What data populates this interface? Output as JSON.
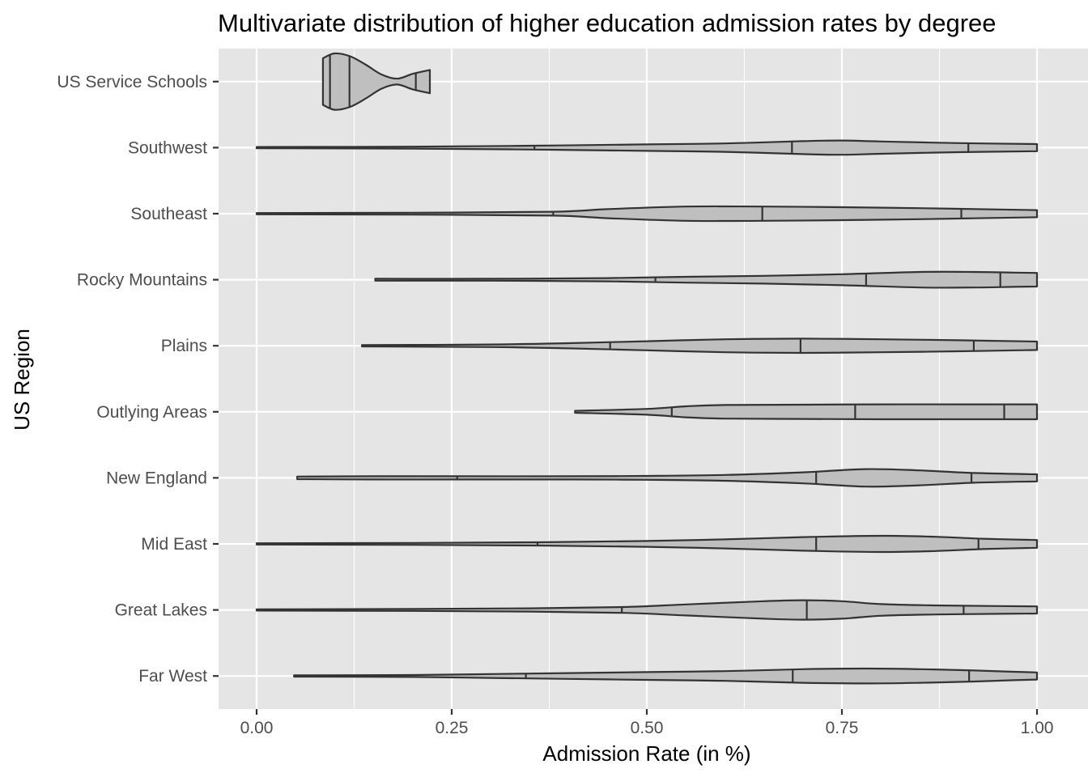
{
  "chart_data": {
    "type": "violin",
    "title": "Multivariate distribution of higher education admission rates by degree",
    "xlabel": "Admission Rate (in %)",
    "ylabel": "US Region",
    "xlim": [
      -0.024,
      1.05
    ],
    "x_ticks": [
      "0.00",
      "0.25",
      "0.50",
      "0.75",
      "1.00"
    ],
    "x_tick_values": [
      0,
      0.25,
      0.5,
      0.75,
      1.0
    ],
    "grid": true,
    "fill_color": "#bfbfbf",
    "outline_color": "#333333",
    "panel_color": "#e5e5e5",
    "categories": [
      "Far West",
      "Great Lakes",
      "Mid East",
      "New England",
      "Outlying Areas",
      "Plains",
      "Rocky Mountains",
      "Southeast",
      "Southwest",
      "US Service Schools"
    ],
    "violins": [
      {
        "category": "Far West",
        "min": 0.048,
        "max": 1.0,
        "quantiles": [
          0.345,
          0.687,
          0.913
        ],
        "density": [
          [
            0.048,
            0.02
          ],
          [
            0.2,
            0.03
          ],
          [
            0.3,
            0.06
          ],
          [
            0.4,
            0.09
          ],
          [
            0.5,
            0.12
          ],
          [
            0.6,
            0.15
          ],
          [
            0.7,
            0.21
          ],
          [
            0.78,
            0.23
          ],
          [
            0.85,
            0.21
          ],
          [
            0.92,
            0.17
          ],
          [
            0.97,
            0.13
          ],
          [
            1.0,
            0.11
          ]
        ]
      },
      {
        "category": "Great Lakes",
        "min": 0.0,
        "max": 1.0,
        "quantiles": [
          0.468,
          0.705,
          0.906
        ],
        "density": [
          [
            0.0,
            0.02
          ],
          [
            0.2,
            0.03
          ],
          [
            0.35,
            0.05
          ],
          [
            0.47,
            0.09
          ],
          [
            0.55,
            0.17
          ],
          [
            0.65,
            0.27
          ],
          [
            0.7,
            0.3
          ],
          [
            0.75,
            0.27
          ],
          [
            0.8,
            0.18
          ],
          [
            0.87,
            0.14
          ],
          [
            0.95,
            0.12
          ],
          [
            1.0,
            0.11
          ]
        ]
      },
      {
        "category": "Mid East",
        "min": 0.0,
        "max": 1.0,
        "quantiles": [
          0.36,
          0.717,
          0.925
        ],
        "density": [
          [
            0.0,
            0.02
          ],
          [
            0.2,
            0.03
          ],
          [
            0.36,
            0.05
          ],
          [
            0.5,
            0.09
          ],
          [
            0.6,
            0.14
          ],
          [
            0.7,
            0.21
          ],
          [
            0.8,
            0.25
          ],
          [
            0.87,
            0.22
          ],
          [
            0.93,
            0.16
          ],
          [
            1.0,
            0.12
          ]
        ]
      },
      {
        "category": "New England",
        "min": 0.052,
        "max": 1.0,
        "quantiles": [
          0.257,
          0.717,
          0.916
        ],
        "density": [
          [
            0.052,
            0.04
          ],
          [
            0.15,
            0.05
          ],
          [
            0.257,
            0.05
          ],
          [
            0.4,
            0.05
          ],
          [
            0.5,
            0.06
          ],
          [
            0.6,
            0.09
          ],
          [
            0.7,
            0.17
          ],
          [
            0.78,
            0.27
          ],
          [
            0.85,
            0.23
          ],
          [
            0.92,
            0.15
          ],
          [
            1.0,
            0.11
          ]
        ]
      },
      {
        "category": "Outlying Areas",
        "min": 0.408,
        "max": 1.0,
        "quantiles": [
          0.532,
          0.767,
          0.958
        ],
        "density": [
          [
            0.408,
            0.03
          ],
          [
            0.5,
            0.09
          ],
          [
            0.55,
            0.17
          ],
          [
            0.6,
            0.21
          ],
          [
            0.7,
            0.22
          ],
          [
            0.8,
            0.23
          ],
          [
            0.9,
            0.23
          ],
          [
            0.96,
            0.23
          ],
          [
            1.0,
            0.23
          ]
        ]
      },
      {
        "category": "Plains",
        "min": 0.135,
        "max": 1.0,
        "quantiles": [
          0.453,
          0.697,
          0.919
        ],
        "density": [
          [
            0.135,
            0.02
          ],
          [
            0.3,
            0.04
          ],
          [
            0.4,
            0.08
          ],
          [
            0.5,
            0.14
          ],
          [
            0.6,
            0.2
          ],
          [
            0.7,
            0.22
          ],
          [
            0.8,
            0.2
          ],
          [
            0.9,
            0.17
          ],
          [
            1.0,
            0.13
          ]
        ]
      },
      {
        "category": "Rocky Mountains",
        "min": 0.152,
        "max": 1.0,
        "quantiles": [
          0.511,
          0.781,
          0.953
        ],
        "density": [
          [
            0.152,
            0.03
          ],
          [
            0.3,
            0.03
          ],
          [
            0.45,
            0.05
          ],
          [
            0.55,
            0.09
          ],
          [
            0.65,
            0.12
          ],
          [
            0.75,
            0.17
          ],
          [
            0.85,
            0.24
          ],
          [
            0.92,
            0.24
          ],
          [
            0.97,
            0.22
          ],
          [
            1.0,
            0.21
          ]
        ]
      },
      {
        "category": "Southeast",
        "min": 0.0,
        "max": 1.0,
        "quantiles": [
          0.38,
          0.648,
          0.903
        ],
        "density": [
          [
            0.0,
            0.02
          ],
          [
            0.2,
            0.03
          ],
          [
            0.38,
            0.06
          ],
          [
            0.45,
            0.14
          ],
          [
            0.55,
            0.22
          ],
          [
            0.65,
            0.22
          ],
          [
            0.75,
            0.2
          ],
          [
            0.85,
            0.17
          ],
          [
            0.95,
            0.13
          ],
          [
            1.0,
            0.11
          ]
        ]
      },
      {
        "category": "Southwest",
        "min": 0.0,
        "max": 1.0,
        "quantiles": [
          0.356,
          0.686,
          0.912
        ],
        "density": [
          [
            0.0,
            0.02
          ],
          [
            0.2,
            0.03
          ],
          [
            0.356,
            0.06
          ],
          [
            0.5,
            0.1
          ],
          [
            0.6,
            0.13
          ],
          [
            0.7,
            0.2
          ],
          [
            0.75,
            0.22
          ],
          [
            0.8,
            0.19
          ],
          [
            0.9,
            0.14
          ],
          [
            1.0,
            0.11
          ]
        ]
      },
      {
        "category": "US Service Schools",
        "min": 0.085,
        "max": 0.222,
        "quantiles": [
          0.094,
          0.119,
          0.204
        ],
        "density": [
          [
            0.085,
            0.72
          ],
          [
            0.1,
            0.87
          ],
          [
            0.12,
            0.78
          ],
          [
            0.14,
            0.52
          ],
          [
            0.16,
            0.22
          ],
          [
            0.18,
            0.09
          ],
          [
            0.2,
            0.24
          ],
          [
            0.222,
            0.36
          ]
        ]
      }
    ]
  }
}
